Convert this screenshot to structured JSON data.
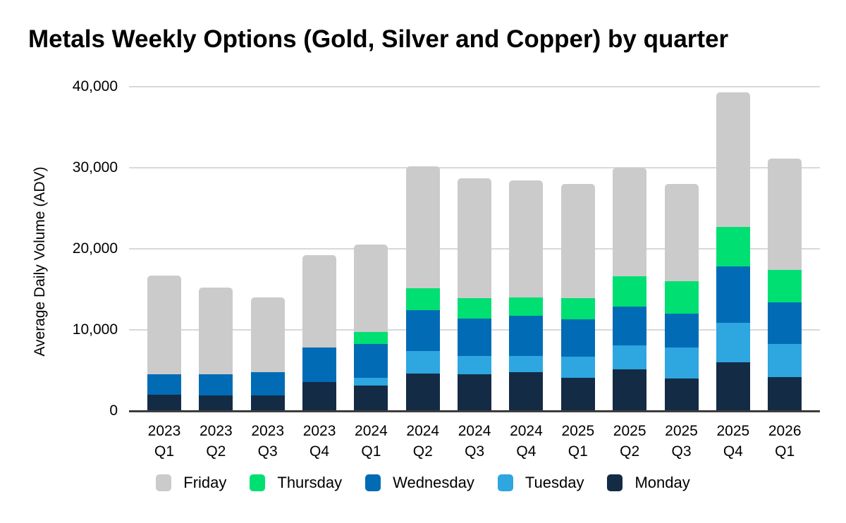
{
  "chart_data": {
    "type": "bar",
    "stacked": true,
    "title": "Metals Weekly Options (Gold, Silver and Copper) by quarter",
    "xlabel": "",
    "ylabel": "Average Daily Volume (ADV)",
    "ylim": [
      0,
      40000
    ],
    "ytick_interval": 10000,
    "ytick_labels": [
      "0",
      "10,000",
      "20,000",
      "30,000",
      "40,000"
    ],
    "grid": true,
    "legend_position": "bottom",
    "categories": [
      "2023 Q1",
      "2023 Q2",
      "2023 Q3",
      "2023 Q4",
      "2024 Q1",
      "2024 Q2",
      "2024 Q3",
      "2024 Q4",
      "2025 Q1",
      "2025 Q2",
      "2025 Q3",
      "2025 Q4",
      "2026 Q1"
    ],
    "series": [
      {
        "name": "Friday",
        "color": "#cbcbcb",
        "values": [
          12200,
          10700,
          9200,
          11400,
          10800,
          15100,
          14800,
          14400,
          14100,
          13400,
          12000,
          16600,
          13700
        ]
      },
      {
        "name": "Thursday",
        "color": "#00df72",
        "values": [
          0,
          0,
          0,
          0,
          1400,
          2700,
          2500,
          2300,
          2600,
          3700,
          4000,
          4900,
          4000
        ]
      },
      {
        "name": "Wednesday",
        "color": "#016cb5",
        "values": [
          2500,
          2600,
          2900,
          4200,
          4200,
          5000,
          4600,
          4900,
          4600,
          4800,
          4200,
          6900,
          5100
        ]
      },
      {
        "name": "Tuesday",
        "color": "#2ea6e0",
        "values": [
          0,
          0,
          0,
          0,
          1000,
          2800,
          2300,
          2000,
          2600,
          3000,
          3800,
          4900,
          4100
        ]
      },
      {
        "name": "Monday",
        "color": "#142b45",
        "values": [
          2000,
          1900,
          1900,
          3600,
          3100,
          4600,
          4500,
          4800,
          4100,
          5100,
          4000,
          6000,
          4200
        ]
      }
    ]
  },
  "colors": {
    "background": "#ffffff",
    "gridline": "#d9d9d9",
    "axis_baseline": "#3c3c3c",
    "text": "#000000"
  }
}
